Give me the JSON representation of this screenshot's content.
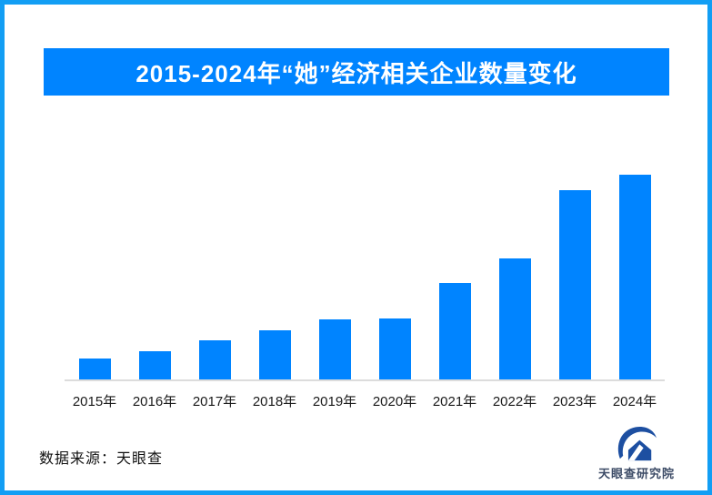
{
  "page": {
    "background_color": "#ffffff",
    "frame_border_color": "#129ef4"
  },
  "header": {
    "title": "2015-2024年“她”经济相关企业数量变化",
    "banner_color": "#0084ff",
    "title_color": "#ffffff"
  },
  "chart_data": {
    "type": "bar",
    "title": "2015-2024年“她”经济相关企业数量变化",
    "categories": [
      "2015年",
      "2016年",
      "2017年",
      "2018年",
      "2019年",
      "2020年",
      "2021年",
      "2022年",
      "2023年",
      "2024年"
    ],
    "values": [
      10.4,
      13.6,
      19.3,
      24,
      29.3,
      29.8,
      47.2,
      59,
      92.5,
      100
    ],
    "values_note": "bars carry no numeric labels; values estimated from pixel heights as % of tallest (2024) bar",
    "xlabel": "",
    "ylabel": "",
    "ylim": [
      0,
      100
    ],
    "grid": false,
    "legend": false,
    "bar_color": "#0084ff",
    "axis_line_color": "#dcdcdc",
    "tick_label_color": "#1a1a1a"
  },
  "footer": {
    "source_text": "数据来源：天眼查",
    "logo_text": "天眼查研究院",
    "logo_icon_color": "#1d4fa1",
    "logo_text_color": "#3c4b66"
  }
}
